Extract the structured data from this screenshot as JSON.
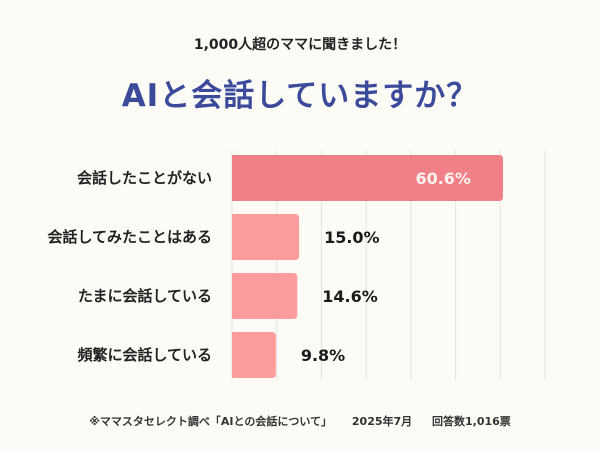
{
  "header": {
    "subtitle": "1,000人超のママに聞きました！",
    "title": "AIと会話していますか？"
  },
  "chart_data": {
    "type": "bar",
    "orientation": "horizontal",
    "categories": [
      "会話したことがない",
      "会話してみたことはある",
      "たまに会話している",
      "頻繁に会話している"
    ],
    "values": [
      60.6,
      15.0,
      14.6,
      9.8
    ],
    "value_labels": [
      "60.6%",
      "15.0%",
      "14.6%",
      "9.8%"
    ],
    "xlim": [
      0,
      70
    ],
    "grid": true,
    "colors": {
      "highlight": "#f07f87",
      "default": "#fc9c9d"
    }
  },
  "footer": {
    "source": "※ママスタセレクト調べ「AIとの会話について」",
    "date": "2025年7月",
    "responses": "回答数1,016票"
  }
}
